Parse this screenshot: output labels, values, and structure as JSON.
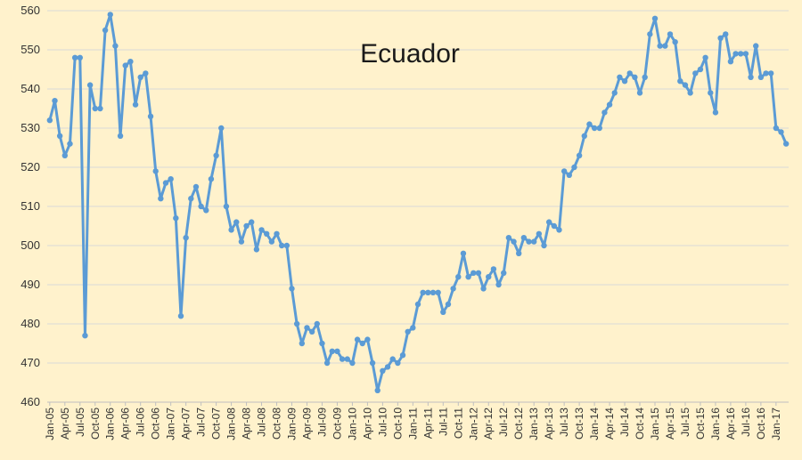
{
  "chart_data": {
    "type": "line",
    "title": "Ecuador",
    "xlabel": "",
    "ylabel": "",
    "ylim": [
      460,
      560
    ],
    "y_ticks": [
      460,
      470,
      480,
      490,
      500,
      510,
      520,
      530,
      540,
      550,
      560
    ],
    "grid": "horizontal",
    "legend": "none",
    "colors": {
      "line": "#5B9BD5",
      "background": "#FFF2CC",
      "grid": "#D9D9D9"
    },
    "x_tick_labels": [
      "Jan-05",
      "Apr-05",
      "Jul-05",
      "Oct-05",
      "Jan-06",
      "Apr-06",
      "Jul-06",
      "Oct-06",
      "Jan-07",
      "Apr-07",
      "Jul-07",
      "Oct-07",
      "Jan-08",
      "Apr-08",
      "Jul-08",
      "Oct-08",
      "Jan-09",
      "Apr-09",
      "Jul-09",
      "Oct-09",
      "Jan-10",
      "Apr-10",
      "Jul-10",
      "Oct-10",
      "Jan-11",
      "Apr-11",
      "Jul-11",
      "Oct-11",
      "Jan-12",
      "Apr-12",
      "Jul-12",
      "Oct-12",
      "Jan-13",
      "Apr-13",
      "Jul-13",
      "Oct-13",
      "Jan-14",
      "Apr-14",
      "Jul-14",
      "Oct-14",
      "Jan-15",
      "Apr-15",
      "Jul-15",
      "Oct-15",
      "Jan-16",
      "Apr-16",
      "Jul-16",
      "Oct-16",
      "Jan-17"
    ],
    "start": "Jan-05",
    "values": [
      532,
      537,
      528,
      523,
      526,
      548,
      548,
      477,
      541,
      535,
      535,
      555,
      559,
      551,
      528,
      546,
      547,
      536,
      543,
      544,
      533,
      519,
      512,
      516,
      517,
      507,
      482,
      502,
      512,
      515,
      510,
      509,
      517,
      523,
      530,
      510,
      504,
      506,
      501,
      505,
      506,
      499,
      504,
      503,
      501,
      503,
      500,
      500,
      489,
      480,
      475,
      479,
      478,
      480,
      475,
      470,
      473,
      473,
      471,
      471,
      470,
      476,
      475,
      476,
      470,
      463,
      468,
      469,
      471,
      470,
      472,
      478,
      479,
      485,
      488,
      488,
      488,
      488,
      483,
      485,
      489,
      492,
      498,
      492,
      493,
      493,
      489,
      492,
      494,
      490,
      493,
      502,
      501,
      498,
      502,
      501,
      501,
      503,
      500,
      506,
      505,
      504,
      519,
      518,
      520,
      523,
      528,
      531,
      530,
      530,
      534,
      536,
      539,
      543,
      542,
      544,
      543,
      539,
      543,
      554,
      558,
      551,
      551,
      554,
      552,
      542,
      541,
      539,
      544,
      545,
      548,
      539,
      534,
      553,
      554,
      547,
      549,
      549,
      549,
      543,
      551,
      543,
      544,
      544,
      530,
      529,
      526
    ]
  }
}
